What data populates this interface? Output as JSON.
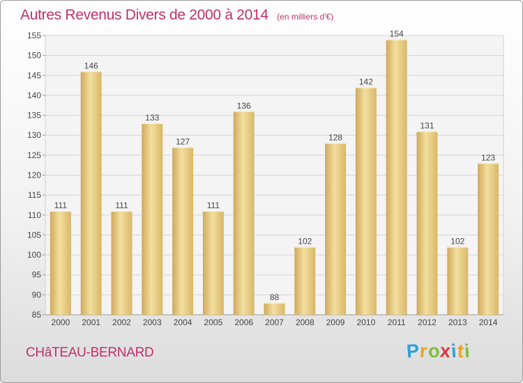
{
  "chart_data": {
    "type": "bar",
    "title": "Autres Revenus Divers de 2000 à 2014",
    "unit": "(en milliers d'€)",
    "categories": [
      "2000",
      "2001",
      "2002",
      "2003",
      "2004",
      "2005",
      "2006",
      "2007",
      "2008",
      "2009",
      "2010",
      "2011",
      "2012",
      "2013",
      "2014"
    ],
    "values": [
      111,
      146,
      111,
      133,
      127,
      111,
      136,
      88,
      102,
      128,
      142,
      154,
      131,
      102,
      123
    ],
    "ylim": [
      85,
      155
    ],
    "yticks": [
      85,
      90,
      95,
      100,
      105,
      110,
      115,
      120,
      125,
      130,
      135,
      140,
      145,
      150,
      155
    ],
    "grid": true,
    "bar_color": "#e3c47e"
  },
  "location": "CHâTEAU-BERNARD",
  "logo": {
    "letters": [
      "P",
      "r",
      "o",
      "x",
      "i",
      "t",
      "i"
    ],
    "colors": [
      "#2e9fd8",
      "#f2a01e",
      "#7cbf3a",
      "#e0343a",
      "#2e9fd8",
      "#f2a01e",
      "#7cbf3a"
    ]
  }
}
